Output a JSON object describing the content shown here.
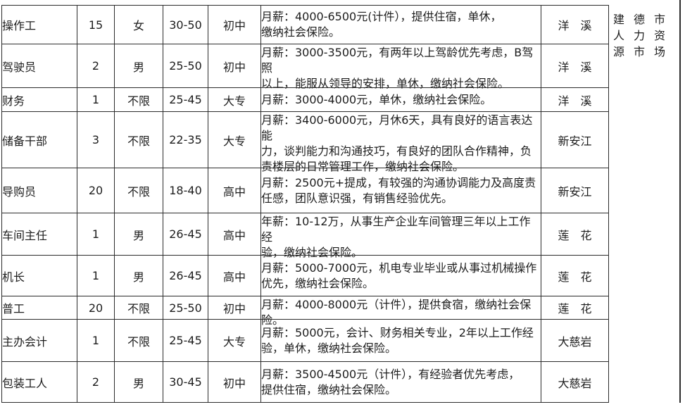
{
  "table": {
    "rows": [
      {
        "job": "操作工",
        "count": "15",
        "gender": "女",
        "age": "30-50",
        "education": "初中",
        "desc": "月薪：4000-6500元(计件），提供住宿，单休，\n缴纳社会保险。",
        "location": "洋　溪"
      },
      {
        "job": "驾驶员",
        "count": "2",
        "gender": "男",
        "age": "25-50",
        "education": "初中",
        "desc": "月薪：3000-3500元，有两年以上驾龄优先考虑，B驾照\n以上，能服从领导的安排，单休，缴纳社会保险。",
        "location": "洋　溪"
      },
      {
        "job": "财务",
        "count": "1",
        "gender": "不限",
        "age": "25-45",
        "education": "大专",
        "desc": "月薪：3000-4000元，单休，缴纳社会保险。",
        "location": "洋　溪"
      },
      {
        "job": "储备干部",
        "count": "3",
        "gender": "不限",
        "age": "22-35",
        "education": "大专",
        "desc": "月薪：3400-6000元，月休6天，具有良好的语言表达能\n力，谈判能力和沟通技巧，有良好的团队合作精神，负\n责楼层的日常管理工作，缴纳社会保险。",
        "location": "新安江"
      },
      {
        "job": "导购员",
        "count": "20",
        "gender": "不限",
        "age": "18-40",
        "education": "高中",
        "desc": "月薪：2500元+提成，有较强的沟通协调能力及高度责\n任感，团队意识强，有销售经验优先。",
        "location": "新安江"
      },
      {
        "job": "车间主任",
        "count": "1",
        "gender": "男",
        "age": "26-45",
        "education": "高中",
        "desc": "年薪：10-12万，从事生产企业车间管理三年以上工作经\n验，缴纳社会保险。",
        "location": "莲　花"
      },
      {
        "job": "机长",
        "count": "1",
        "gender": "男",
        "age": "26-45",
        "education": "高中",
        "desc": "月薪：5000-7000元，机电专业毕业或从事过机械操作\n优先，缴纳社会保险。",
        "location": "莲　花"
      },
      {
        "job": "普工",
        "count": "20",
        "gender": "不限",
        "age": "25-50",
        "education": "初中",
        "desc": "月薪：4000-8000元（计件），提供食宿，缴纳社会保\n险。",
        "location": "莲　花"
      },
      {
        "job": "主办会计",
        "count": "1",
        "gender": "不限",
        "age": "25-45",
        "education": "大专",
        "desc": "月薪：5000元，会计、财务相关专业，2年以上工作经\n验，单休，缴纳社会保险。",
        "location": "大慈岩"
      },
      {
        "job": "包装工人",
        "count": "2",
        "gender": "男",
        "age": "30-45",
        "education": "初中",
        "desc": "月薪：3500-4500元（计件），有经验者优先考虑，\n提供住宿，缴纳社会保险。",
        "location": "大慈岩"
      }
    ]
  },
  "side_header": {
    "lines": [
      "建德市",
      "人力资",
      "源市场"
    ]
  },
  "colors": {
    "border": "#2b2b2b",
    "text": "#1d1d1d",
    "background": "#ffffff"
  }
}
